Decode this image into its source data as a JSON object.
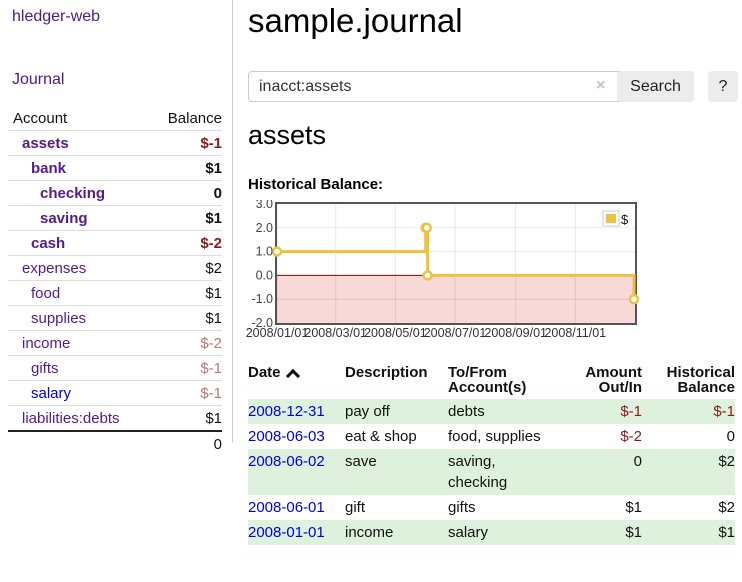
{
  "sidebar": {
    "brand": "hledger-web",
    "journal_label": "Journal",
    "accounts_table": {
      "account_header": "Account",
      "balance_header": "Balance",
      "rows": [
        {
          "name": "assets",
          "balance": "$-1",
          "depth": 1,
          "emph": true
        },
        {
          "name": "bank",
          "balance": "$1",
          "depth": 2,
          "emph": true
        },
        {
          "name": "checking",
          "balance": "0",
          "depth": 3,
          "emph": true
        },
        {
          "name": "saving",
          "balance": "$1",
          "depth": 3,
          "emph": true
        },
        {
          "name": "cash",
          "balance": "$-2",
          "depth": 2,
          "emph": true
        },
        {
          "name": "expenses",
          "balance": "$2",
          "depth": 1,
          "emph": false
        },
        {
          "name": "food",
          "balance": "$1",
          "depth": 2,
          "emph": false
        },
        {
          "name": "supplies",
          "balance": "$1",
          "depth": 2,
          "emph": false
        },
        {
          "name": "income",
          "balance": "$-2",
          "depth": 1,
          "emph": false
        },
        {
          "name": "gifts",
          "balance": "$-1",
          "depth": 2,
          "emph": false
        },
        {
          "name": "salary",
          "balance": "$-1",
          "depth": 2,
          "emph": false,
          "link_variant": "blue"
        },
        {
          "name": "liabilities:debts",
          "balance": "$1",
          "depth": 1,
          "emph": false
        }
      ],
      "total": "0"
    }
  },
  "main": {
    "title": "sample.journal",
    "search": {
      "value": "inacct:assets",
      "clear_icon": "×",
      "button_label": "Search",
      "help_label": "?"
    },
    "account_heading": "assets",
    "chart_label": "Historical Balance:"
  },
  "chart_data": {
    "type": "line",
    "step": true,
    "title": "Historical Balance:",
    "series": [
      {
        "name": "$",
        "color": "#EDC240",
        "points": [
          [
            "2008-01-01",
            1
          ],
          [
            "2008-06-01",
            2
          ],
          [
            "2008-06-02",
            2
          ],
          [
            "2008-06-03",
            0
          ],
          [
            "2008-12-31",
            -1
          ]
        ]
      }
    ],
    "xlim": [
      "2008-01-01",
      "2009-01-01"
    ],
    "ylim": [
      -2,
      3
    ],
    "ytick_labels": [
      "3.0",
      "2.0",
      "1.0",
      "0.0",
      "-1.0",
      "-2.0"
    ],
    "yticks": [
      3,
      2,
      1,
      0,
      -1,
      -2
    ],
    "xticks": [
      "2008-01-01",
      "2008-03-01",
      "2008-05-01",
      "2008-07-01",
      "2008-09-01",
      "2008-11-01"
    ],
    "xtick_labels": [
      "2008/01/01",
      "2008/03/01",
      "2008/05/01",
      "2008/07/01",
      "2008/09/01",
      "2008/11/01"
    ],
    "legend": {
      "label": "$",
      "position": "top-right"
    },
    "grid": true,
    "negative_region_color": "#f9d8d8",
    "zero_line_color": "#8b0000",
    "border_color": "#545454"
  },
  "register": {
    "headers": [
      "Date",
      "Description",
      "To/From\nAccount(s)",
      "Amount\nOut/In",
      "Historical\nBalance"
    ],
    "sort_icon": "chevron-up-icon",
    "rows": [
      {
        "date": "2008-12-31",
        "description": "pay off",
        "accounts": "debts",
        "amount": "$-1",
        "balance": "$-1"
      },
      {
        "date": "2008-06-03",
        "description": "eat & shop",
        "accounts": "food, supplies",
        "amount": "$-2",
        "balance": "0"
      },
      {
        "date": "2008-06-02",
        "description": "save",
        "accounts": "saving,\nchecking",
        "amount": "0",
        "balance": "$2"
      },
      {
        "date": "2008-06-01",
        "description": "gift",
        "accounts": "gifts",
        "amount": "$1",
        "balance": "$2"
      },
      {
        "date": "2008-01-01",
        "description": "income",
        "accounts": "salary",
        "amount": "$1",
        "balance": "$1"
      }
    ]
  }
}
